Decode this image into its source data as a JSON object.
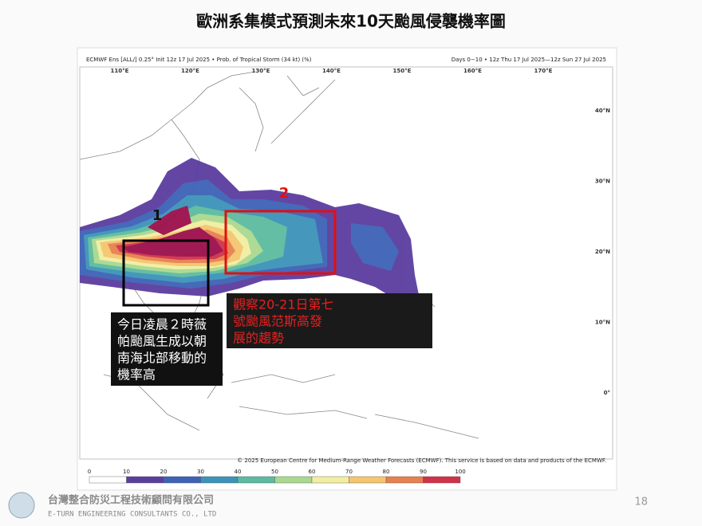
{
  "slide": {
    "title": "歐洲系集模式預測未來10天颱風侵襲機率圖",
    "page_number": "18"
  },
  "map": {
    "header_left": "ECMWF Ens [ALL/] 0.25° Init 12z 17 Jul 2025 • Prob. of Tropical Storm (34 kt) (%)",
    "header_right": "Days 0−10 • 12z Thu 17 Jul 2025—12z Sun 27 Jul 2025",
    "lon_labels": [
      "110°E",
      "120°E",
      "130°E",
      "140°E",
      "150°E",
      "160°E",
      "170°E"
    ],
    "lat_labels": [
      "40°N",
      "30°N",
      "20°N",
      "10°N",
      "0°"
    ],
    "copyright": "© 2025 European Centre for Medium-Range Weather Forecasts (ECMWF). This service is based on data and products of the ECMWF.",
    "markers": [
      "1",
      "2"
    ],
    "notes": [
      {
        "lines": [
          "今日凌晨２時薇",
          "帕颱風生成以朝",
          "南海北部移動的",
          "機率高"
        ]
      },
      {
        "lines": [
          "觀察20-21日第七",
          "號颱風范斯高發",
          "展的趨勢"
        ]
      }
    ],
    "colorbar": {
      "ticks": [
        0,
        10,
        20,
        30,
        40,
        50,
        60,
        70,
        80,
        90,
        100
      ],
      "colors": [
        "#ffffff",
        "#5b3d9f",
        "#3e62b6",
        "#3c93b9",
        "#5cbba0",
        "#a9d98f",
        "#f1eea2",
        "#f4c66e",
        "#e8804f",
        "#d0324a",
        "#9b0f4b"
      ]
    }
  },
  "footer": {
    "company": "台灣整合防災工程技術顧問有限公司",
    "company_en": "E-TURN ENGINEERING CONSULTANTS CO., LTD"
  }
}
